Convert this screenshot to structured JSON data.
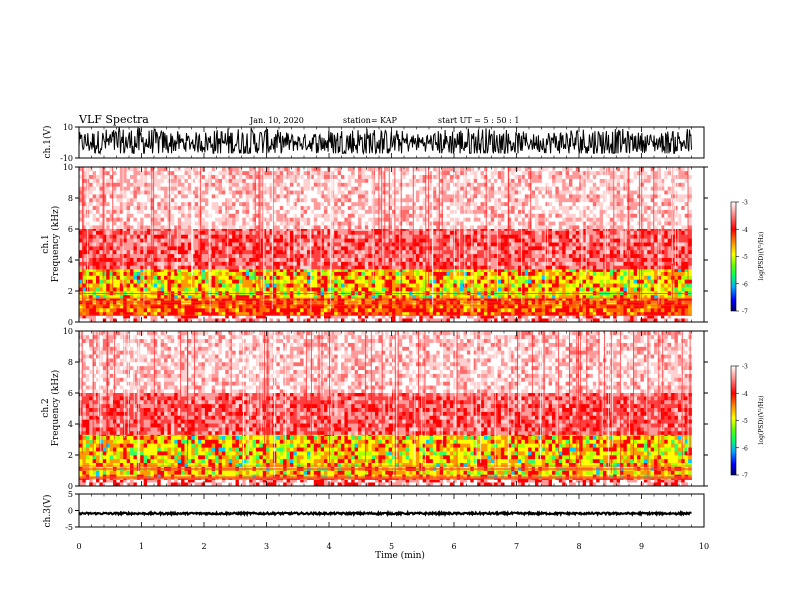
{
  "header": {
    "title": "VLF Spectra",
    "date": "Jan. 10, 2020",
    "station": "station= KAP",
    "start": "start  UT =  5 : 50 : 1"
  },
  "chart_data": [
    {
      "id": "ch1-waveform",
      "type": "line",
      "ylabel": "ch.1(V)",
      "ylim": [
        -10,
        10
      ],
      "y_ticks": [
        "10",
        "-10"
      ],
      "xlim": [
        0,
        10
      ],
      "data_extent_min": 9.8,
      "amplitude_range": [
        -7,
        10
      ]
    },
    {
      "id": "ch1-spectrogram",
      "type": "heatmap",
      "ylabel": "ch.1\nFrequency  (kHz)",
      "ylim": [
        0,
        10
      ],
      "y_ticks": [
        "0",
        "2",
        "4",
        "6",
        "8",
        "10"
      ],
      "xlim": [
        0,
        10
      ],
      "data_extent_min": 9.8,
      "strong_band_khz": [
        1.5,
        3.4
      ]
    },
    {
      "id": "ch2-spectrogram",
      "type": "heatmap",
      "ylabel": "ch.2\nFrequency  (kHz)",
      "ylim": [
        0,
        10
      ],
      "y_ticks": [
        "0",
        "2",
        "4",
        "6",
        "8",
        "10"
      ],
      "xlim": [
        0,
        10
      ],
      "data_extent_min": 9.8,
      "strong_band_khz": [
        0.5,
        3.3
      ]
    },
    {
      "id": "ch3-waveform",
      "type": "line",
      "ylabel": "ch.3(V)",
      "ylim": [
        -5,
        5
      ],
      "y_ticks": [
        "5",
        "0",
        "-5"
      ],
      "xlim": [
        0,
        10
      ],
      "x_ticks": [
        "0",
        "1",
        "2",
        "3",
        "4",
        "5",
        "6",
        "7",
        "8",
        "9",
        "10"
      ],
      "xlabel": "Time  (min)",
      "data_extent_min": 9.8,
      "amplitude_range": [
        -1.2,
        -0.6
      ]
    }
  ],
  "colorbar": {
    "label": "log(PSD)(V²/Hz)",
    "range": [
      -7,
      -3
    ],
    "ticks": [
      "-3",
      "-4",
      "-5",
      "-6",
      "-7"
    ],
    "colors": [
      "#000066",
      "#0000ff",
      "#00aaff",
      "#00ff66",
      "#66ff00",
      "#ffff00",
      "#ff9900",
      "#ff0000",
      "#ff8888",
      "#ffffff"
    ]
  }
}
